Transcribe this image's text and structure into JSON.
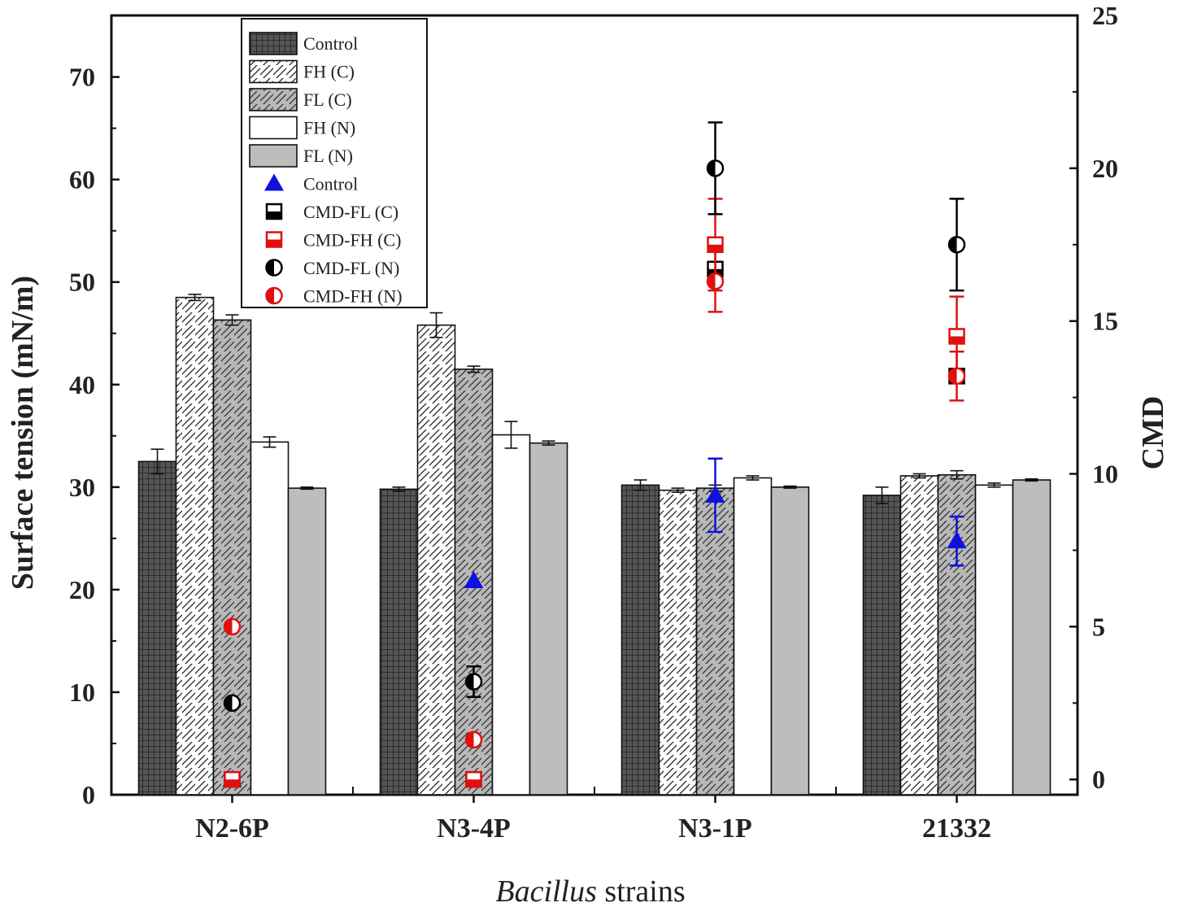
{
  "chart_data": {
    "type": "bar",
    "xlabel_italic": "Bacillus",
    "xlabel_rest": " strains",
    "ylabel": "Surface tension (mN/m)",
    "y2label": "CMD",
    "ylim": [
      0,
      76
    ],
    "y2lim": [
      -0.5,
      25
    ],
    "yticks": [
      0,
      10,
      20,
      30,
      40,
      50,
      60,
      70
    ],
    "y2ticks": [
      0,
      5,
      10,
      15,
      20,
      25
    ],
    "categories": [
      "N2-6P",
      "N3-4P",
      "N3-1P",
      "21332"
    ],
    "bar_series": [
      {
        "name": "Control",
        "pattern": "grid",
        "values": [
          32.5,
          29.8,
          30.2,
          29.2
        ],
        "errors": [
          1.2,
          0.2,
          0.5,
          0.8
        ]
      },
      {
        "name": "FH (C)",
        "pattern": "hatch-white",
        "values": [
          48.5,
          45.8,
          29.7,
          31.1
        ],
        "errors": [
          0.3,
          1.2,
          0.2,
          0.2
        ]
      },
      {
        "name": "FL (C)",
        "pattern": "hatch-gray",
        "values": [
          46.3,
          41.5,
          29.9,
          31.2
        ],
        "errors": [
          0.5,
          0.3,
          0.3,
          0.4
        ]
      },
      {
        "name": "FH (N)",
        "pattern": "white",
        "values": [
          34.4,
          35.1,
          30.9,
          30.2
        ],
        "errors": [
          0.5,
          1.3,
          0.2,
          0.2
        ]
      },
      {
        "name": "FL (N)",
        "pattern": "gray",
        "values": [
          29.9,
          34.3,
          30.0,
          30.7
        ],
        "errors": [
          0.1,
          0.2,
          0.1,
          0.1
        ]
      }
    ],
    "point_series": [
      {
        "name": "Control",
        "marker": "triangle",
        "color": "#1010e0",
        "slot": 2,
        "values": [
          0,
          6.5,
          9.3,
          7.8
        ],
        "errors": [
          0,
          0,
          1.2,
          0.8
        ]
      },
      {
        "name": "CMD-FL (C)",
        "marker": "square-half-bottom",
        "color": "#000000",
        "slot": 2,
        "values": [
          0,
          0,
          16.7,
          13.2
        ],
        "errors": [
          0,
          0,
          0,
          0
        ]
      },
      {
        "name": "CMD-FH (C)",
        "marker": "square-half-bottom",
        "color": "#e01010",
        "slot": 2,
        "values": [
          0,
          0,
          17.5,
          14.5
        ],
        "errors": [
          0,
          0,
          1.5,
          1.3
        ]
      },
      {
        "name": "CMD-FL (N)",
        "marker": "circle-half-left",
        "color": "#000000",
        "slot": 2,
        "values": [
          2.5,
          3.2,
          20.0,
          17.5
        ],
        "errors": [
          0,
          0.5,
          1.5,
          1.5
        ]
      },
      {
        "name": "CMD-FH (N)",
        "marker": "circle-half-left",
        "color": "#e01010",
        "slot": 2,
        "values": [
          5.0,
          1.3,
          16.3,
          13.2
        ],
        "errors": [
          0,
          0,
          1.0,
          0.8
        ]
      }
    ],
    "legend_position": "top-left"
  }
}
